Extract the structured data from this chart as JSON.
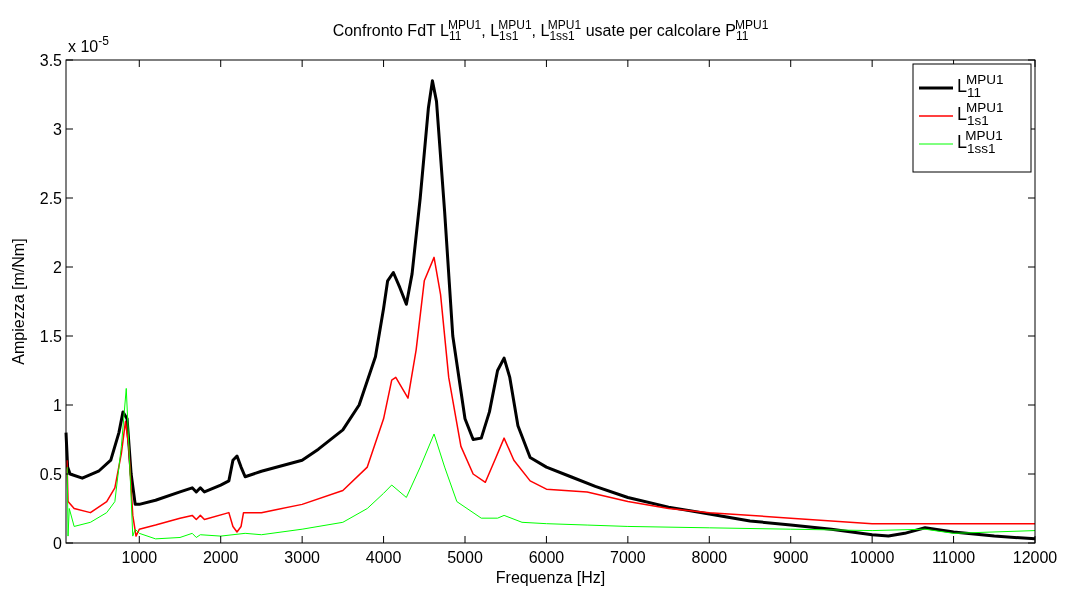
{
  "chart_data": {
    "type": "line",
    "title": "Confronto FdT L$_{11}$$^{MPU1}$, L$_{1s1}$$^{MPU1}$, L$_{1ss1}$$^{MPU1}$ usate per calcolare P$_{11}$$^{MPU1}$",
    "xlabel": "Frequenza [Hz]",
    "ylabel": "Ampiezza [m/Nm]",
    "annotations": [
      "x 10$^{-5}$"
    ],
    "xlim": [
      100,
      12000
    ],
    "xticks": [
      1000,
      2000,
      3000,
      4000,
      5000,
      6000,
      7000,
      8000,
      9000,
      10000,
      11000,
      12000
    ],
    "ylim": [
      0,
      3.5
    ],
    "yticks": [
      0,
      0.5,
      1,
      1.5,
      2,
      2.5,
      3,
      3.5
    ],
    "grid": false,
    "legend": "top right",
    "line_style": "solid",
    "series": [
      {
        "name": "L$_{11}$$^{MPU1}$",
        "color": "#000000",
        "x": [
          100,
          120,
          150,
          300,
          500,
          650,
          750,
          800,
          850,
          900,
          950,
          1000,
          1200,
          1500,
          1650,
          1700,
          1750,
          1800,
          2000,
          2100,
          2150,
          2200,
          2250,
          2300,
          2500,
          3000,
          3200,
          3500,
          3700,
          3900,
          4000,
          4050,
          4120,
          4200,
          4280,
          4350,
          4450,
          4550,
          4600,
          4650,
          4750,
          4850,
          5000,
          5100,
          5200,
          5300,
          5400,
          5480,
          5550,
          5650,
          5800,
          6000,
          6300,
          6600,
          7000,
          7500,
          8000,
          8500,
          9000,
          9500,
          10000,
          10200,
          10400,
          10650,
          11000,
          11500,
          12000
        ],
        "values": [
          0.8,
          0.55,
          0.5,
          0.47,
          0.52,
          0.6,
          0.8,
          0.95,
          0.9,
          0.5,
          0.28,
          0.28,
          0.31,
          0.37,
          0.4,
          0.37,
          0.4,
          0.37,
          0.42,
          0.45,
          0.6,
          0.63,
          0.55,
          0.48,
          0.52,
          0.6,
          0.68,
          0.82,
          1.0,
          1.35,
          1.7,
          1.9,
          1.96,
          1.85,
          1.73,
          1.95,
          2.5,
          3.15,
          3.35,
          3.2,
          2.4,
          1.5,
          0.9,
          0.75,
          0.76,
          0.95,
          1.25,
          1.34,
          1.2,
          0.85,
          0.62,
          0.55,
          0.48,
          0.41,
          0.33,
          0.26,
          0.21,
          0.16,
          0.13,
          0.1,
          0.06,
          0.05,
          0.07,
          0.11,
          0.08,
          0.05,
          0.03
        ]
      },
      {
        "name": "L$_{1s1}$$^{MPU1}$",
        "color": "#ff0000",
        "x": [
          112,
          125,
          200,
          400,
          600,
          700,
          780,
          830,
          870,
          920,
          960,
          1000,
          1200,
          1500,
          1650,
          1700,
          1750,
          1800,
          2100,
          2150,
          2200,
          2250,
          2280,
          2500,
          3000,
          3500,
          3800,
          4000,
          4100,
          4150,
          4300,
          4400,
          4500,
          4620,
          4700,
          4800,
          4950,
          5100,
          5250,
          5380,
          5480,
          5600,
          5800,
          6000,
          6500,
          7000,
          7500,
          8000,
          9000,
          10000,
          12000
        ],
        "values": [
          0.6,
          0.3,
          0.25,
          0.22,
          0.3,
          0.4,
          0.65,
          0.88,
          0.7,
          0.2,
          0.05,
          0.1,
          0.13,
          0.18,
          0.2,
          0.17,
          0.2,
          0.17,
          0.22,
          0.12,
          0.08,
          0.12,
          0.22,
          0.22,
          0.28,
          0.38,
          0.55,
          0.9,
          1.18,
          1.2,
          1.05,
          1.4,
          1.9,
          2.07,
          1.8,
          1.2,
          0.7,
          0.5,
          0.44,
          0.62,
          0.76,
          0.6,
          0.45,
          0.39,
          0.37,
          0.3,
          0.25,
          0.22,
          0.18,
          0.14,
          0.14
        ]
      },
      {
        "name": "L$_{1ss1}$$^{MPU1}$",
        "color": "#00ff00",
        "x": [
          115,
          125,
          140,
          200,
          400,
          600,
          700,
          780,
          840,
          880,
          920,
          950,
          1000,
          1200,
          1500,
          1650,
          1700,
          1750,
          2000,
          2300,
          2500,
          3000,
          3500,
          3800,
          4000,
          4100,
          4280,
          4450,
          4620,
          4750,
          4900,
          5200,
          5400,
          5480,
          5700,
          6000,
          6500,
          7000,
          8000,
          9000,
          10000,
          10650,
          11000,
          12000
        ],
        "values": [
          0.55,
          0.05,
          0.25,
          0.12,
          0.15,
          0.22,
          0.3,
          0.7,
          1.12,
          0.6,
          0.05,
          0.1,
          0.07,
          0.03,
          0.04,
          0.07,
          0.04,
          0.06,
          0.05,
          0.07,
          0.06,
          0.1,
          0.15,
          0.25,
          0.36,
          0.42,
          0.33,
          0.55,
          0.79,
          0.55,
          0.3,
          0.18,
          0.18,
          0.2,
          0.15,
          0.14,
          0.13,
          0.12,
          0.11,
          0.1,
          0.09,
          0.1,
          0.07,
          0.09
        ]
      }
    ]
  }
}
